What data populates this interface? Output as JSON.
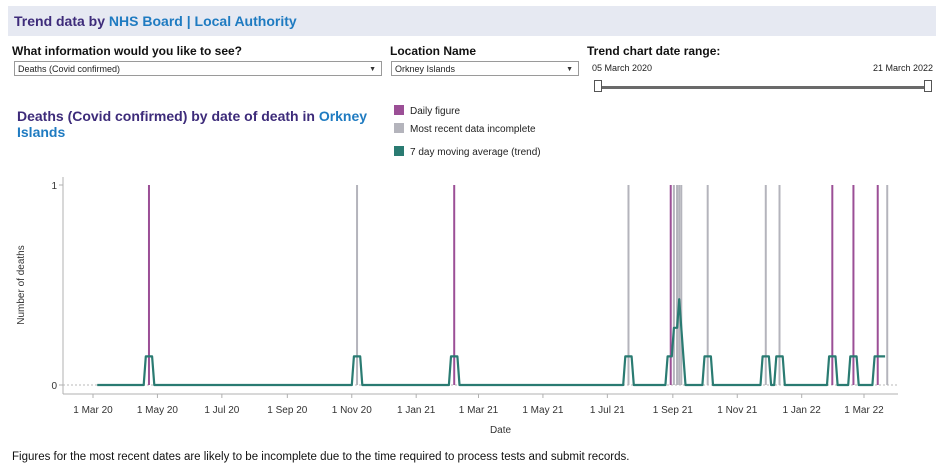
{
  "header": {
    "title_part1": "Trend data by ",
    "title_part2": "NHS Board | Local Authority"
  },
  "controls": {
    "info_label": "What information would you like to see?",
    "info_value": "Deaths (Covid confirmed)",
    "location_label": "Location Name",
    "location_value": "Orkney Islands",
    "range_label": "Trend chart date range:",
    "range_start": "05 March 2020",
    "range_end": "21 March 2022"
  },
  "chart_title": {
    "prefix": "Deaths (Covid confirmed) by date of death in ",
    "location": "Orkney Islands"
  },
  "legend": [
    {
      "label": "Daily figure",
      "color": "#9b4f96"
    },
    {
      "label": "Most recent data incomplete",
      "color": "#b4b4bc"
    },
    {
      "label": "7 day moving average (trend)",
      "color": "#2a7b72"
    }
  ],
  "footnote": "Figures for the most recent dates are likely to be incomplete due to the time required to process tests and submit records.",
  "chart_data": {
    "type": "line",
    "xlabel": "Date",
    "ylabel": "Number of deaths",
    "ylim": [
      0,
      1
    ],
    "yticks": [
      0,
      1
    ],
    "xlim": [
      "2020-03-05",
      "2022-03-21"
    ],
    "xticks": [
      {
        "date": "2020-03-01",
        "label": "1 Mar 20"
      },
      {
        "date": "2020-05-01",
        "label": "1 May 20"
      },
      {
        "date": "2020-07-01",
        "label": "1 Jul 20"
      },
      {
        "date": "2020-09-01",
        "label": "1 Sep 20"
      },
      {
        "date": "2020-11-01",
        "label": "1 Nov 20"
      },
      {
        "date": "2021-01-01",
        "label": "1 Jan 21"
      },
      {
        "date": "2021-03-01",
        "label": "1 Mar 21"
      },
      {
        "date": "2021-05-01",
        "label": "1 May 21"
      },
      {
        "date": "2021-07-01",
        "label": "1 Jul 21"
      },
      {
        "date": "2021-09-01",
        "label": "1 Sep 21"
      },
      {
        "date": "2021-11-01",
        "label": "1 Nov 21"
      },
      {
        "date": "2022-01-01",
        "label": "1 Jan 22"
      },
      {
        "date": "2022-03-01",
        "label": "1 Mar 22"
      }
    ],
    "grid": false,
    "series": [
      {
        "name": "Daily figure",
        "color": "#9b4f96",
        "points": [
          {
            "date": "2020-04-23",
            "value": 1
          },
          {
            "date": "2021-02-06",
            "value": 1
          },
          {
            "date": "2021-08-30",
            "value": 1
          },
          {
            "date": "2022-01-30",
            "value": 1
          },
          {
            "date": "2022-02-19",
            "value": 1
          },
          {
            "date": "2022-03-14",
            "value": 1
          }
        ]
      },
      {
        "name": "Most recent data incomplete",
        "color": "#b4b4bc",
        "points": [
          {
            "date": "2020-11-06",
            "value": 1
          },
          {
            "date": "2021-07-21",
            "value": 1
          },
          {
            "date": "2021-09-02",
            "value": 1
          },
          {
            "date": "2021-09-05",
            "value": 1
          },
          {
            "date": "2021-09-07",
            "value": 1
          },
          {
            "date": "2021-09-09",
            "value": 1
          },
          {
            "date": "2021-10-04",
            "value": 1
          },
          {
            "date": "2021-11-28",
            "value": 1
          },
          {
            "date": "2021-12-11",
            "value": 1
          },
          {
            "date": "2022-03-23",
            "value": 1
          }
        ]
      },
      {
        "name": "7 day moving average (trend)",
        "color": "#2a7b72",
        "points": [
          {
            "date": "2020-03-05",
            "value": 0
          },
          {
            "date": "2020-04-18",
            "value": 0
          },
          {
            "date": "2020-04-20",
            "value": 0.143
          },
          {
            "date": "2020-04-26",
            "value": 0.143
          },
          {
            "date": "2020-04-28",
            "value": 0
          },
          {
            "date": "2020-11-01",
            "value": 0
          },
          {
            "date": "2020-11-03",
            "value": 0.143
          },
          {
            "date": "2020-11-09",
            "value": 0.143
          },
          {
            "date": "2020-11-11",
            "value": 0
          },
          {
            "date": "2021-02-01",
            "value": 0
          },
          {
            "date": "2021-02-03",
            "value": 0.143
          },
          {
            "date": "2021-02-09",
            "value": 0.143
          },
          {
            "date": "2021-02-11",
            "value": 0
          },
          {
            "date": "2021-07-16",
            "value": 0
          },
          {
            "date": "2021-07-18",
            "value": 0.143
          },
          {
            "date": "2021-07-24",
            "value": 0.143
          },
          {
            "date": "2021-07-26",
            "value": 0
          },
          {
            "date": "2021-08-25",
            "value": 0
          },
          {
            "date": "2021-08-27",
            "value": 0.143
          },
          {
            "date": "2021-08-31",
            "value": 0.143
          },
          {
            "date": "2021-09-02",
            "value": 0.286
          },
          {
            "date": "2021-09-05",
            "value": 0.286
          },
          {
            "date": "2021-09-07",
            "value": 0.429
          },
          {
            "date": "2021-09-09",
            "value": 0.286
          },
          {
            "date": "2021-09-11",
            "value": 0.143
          },
          {
            "date": "2021-09-13",
            "value": 0
          },
          {
            "date": "2021-09-29",
            "value": 0
          },
          {
            "date": "2021-10-01",
            "value": 0.143
          },
          {
            "date": "2021-10-07",
            "value": 0.143
          },
          {
            "date": "2021-10-09",
            "value": 0
          },
          {
            "date": "2021-11-23",
            "value": 0
          },
          {
            "date": "2021-11-25",
            "value": 0.143
          },
          {
            "date": "2021-12-01",
            "value": 0.143
          },
          {
            "date": "2021-12-03",
            "value": 0
          },
          {
            "date": "2021-12-06",
            "value": 0
          },
          {
            "date": "2021-12-08",
            "value": 0.143
          },
          {
            "date": "2021-12-14",
            "value": 0.143
          },
          {
            "date": "2021-12-16",
            "value": 0
          },
          {
            "date": "2022-01-25",
            "value": 0
          },
          {
            "date": "2022-01-27",
            "value": 0.143
          },
          {
            "date": "2022-02-02",
            "value": 0.143
          },
          {
            "date": "2022-02-04",
            "value": 0
          },
          {
            "date": "2022-02-14",
            "value": 0
          },
          {
            "date": "2022-02-16",
            "value": 0.143
          },
          {
            "date": "2022-02-22",
            "value": 0.143
          },
          {
            "date": "2022-02-24",
            "value": 0
          },
          {
            "date": "2022-03-09",
            "value": 0
          },
          {
            "date": "2022-03-11",
            "value": 0.143
          },
          {
            "date": "2022-03-21",
            "value": 0.143
          }
        ]
      }
    ]
  }
}
